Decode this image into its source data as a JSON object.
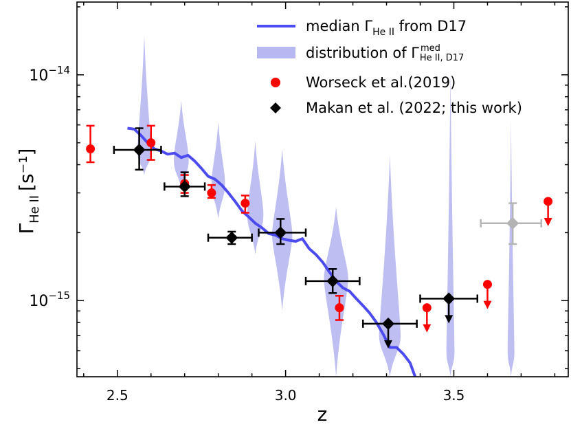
{
  "chart_data": {
    "type": "scatter",
    "title": "",
    "xlabel": "z",
    "ylabel": {
      "base": "Γ",
      "sub": "He II",
      "unit": "[s⁻¹]"
    },
    "xlim": [
      2.38,
      3.84
    ],
    "ylim": [
      4.6e-16,
      2.1e-14
    ],
    "yscale": "log",
    "x_ticks": [
      2.5,
      3.0,
      3.5
    ],
    "x_tick_labels": [
      "2.5",
      "3.0",
      "3.5"
    ],
    "y_ticks": [
      1e-15,
      1e-14
    ],
    "y_tick_labels": [
      {
        "base": "10",
        "exp": "−15"
      },
      {
        "base": "10",
        "exp": "−14"
      }
    ],
    "legend": {
      "position": "top-right",
      "entries": [
        {
          "label": "median Γ",
          "sub": "He II",
          "rest": " from D17",
          "marker": "line",
          "color": "#4b4bef"
        },
        {
          "label": "distribution of Γ",
          "sup": "med",
          "sub": "He II, D17",
          "marker": "band",
          "color": "#b7b7f2"
        },
        {
          "label": "Worseck et al.(2019)",
          "marker": "circle",
          "color": "#ff0000"
        },
        {
          "label": "Makan et al. (2022; this work)",
          "marker": "diamond",
          "color": "#000000"
        }
      ]
    },
    "median_curve": {
      "name": "median Γ He II from D17",
      "color": "#4b4bef",
      "x": [
        2.53,
        2.55,
        2.57,
        2.59,
        2.61,
        2.63,
        2.65,
        2.67,
        2.69,
        2.71,
        2.73,
        2.75,
        2.77,
        2.79,
        2.81,
        2.83,
        2.85,
        2.87,
        2.89,
        2.91,
        2.93,
        2.95,
        2.97,
        2.99,
        3.01,
        3.03,
        3.05,
        3.07,
        3.09,
        3.11,
        3.13,
        3.15,
        3.17,
        3.19,
        3.21,
        3.23,
        3.25,
        3.27,
        3.29,
        3.31,
        3.33,
        3.35,
        3.37,
        3.385
      ],
      "y": [
        5.8e-15,
        5.75e-15,
        5.4e-15,
        5e-15,
        4.7e-15,
        4.6e-15,
        4.45e-15,
        4.5e-15,
        4.3e-15,
        4.4e-15,
        4.15e-15,
        3.85e-15,
        3.55e-15,
        3.45e-15,
        3.25e-15,
        3e-15,
        2.75e-15,
        2.5e-15,
        2.35e-15,
        2.2e-15,
        2.1e-15,
        1.98e-15,
        1.95e-15,
        1.88e-15,
        1.85e-15,
        1.83e-15,
        1.88e-15,
        1.7e-15,
        1.6e-15,
        1.48e-15,
        1.34e-15,
        1.22e-15,
        1.14e-15,
        1.1e-15,
        1.02e-15,
        9.5e-16,
        8.8e-16,
        8e-16,
        7.1e-16,
        6.2e-16,
        6.2e-16,
        5.8e-16,
        5.3e-16,
        4.6e-16
      ]
    },
    "distribution": {
      "name": "distribution of Γ med He II, D17",
      "color": "#b7b7f2",
      "violins": [
        {
          "x": 2.58,
          "y_range": [
            5e-15,
            1.5e-14
          ],
          "y_center": 4.6e-15,
          "half_width_z": 0.02,
          "y_low": 3.6e-15
        },
        {
          "x": 2.69,
          "y_range": [
            3.4e-15,
            7.7e-15
          ],
          "y_center": 4.2e-15,
          "half_width_z": 0.022,
          "y_low": 3.1e-15
        },
        {
          "x": 2.8,
          "y_range": [
            2.7e-15,
            6.2e-15
          ],
          "y_center": 3.3e-15,
          "half_width_z": 0.02,
          "y_low": 2.3e-15
        },
        {
          "x": 2.91,
          "y_range": [
            1.95e-15,
            5.1e-15
          ],
          "y_center": 2.4e-15,
          "half_width_z": 0.024,
          "y_low": 1.6e-15
        },
        {
          "x": 2.99,
          "y_range": [
            1.6e-15,
            4.7e-15
          ],
          "y_center": 1.95e-15,
          "half_width_z": 0.03,
          "y_low": 9e-16
        },
        {
          "x": 3.15,
          "y_range": [
            4.6e-16,
            2.6e-15
          ],
          "y_center": 1.25e-15,
          "half_width_z": 0.036,
          "y_low": 4.6e-16
        },
        {
          "x": 3.31,
          "y_range": [
            4.6e-16,
            4.4e-15
          ],
          "y_center": 7e-16,
          "half_width_z": 0.032,
          "y_low": 4.6e-16
        },
        {
          "x": 3.49,
          "y_range": [
            4.6e-16,
            1.05e-14
          ],
          "y_center": 6e-16,
          "half_width_z": 0.012,
          "y_low": 4.6e-16
        },
        {
          "x": 3.67,
          "y_range": [
            4.6e-16,
            6.3e-15
          ],
          "y_center": 6e-16,
          "half_width_z": 0.01,
          "y_low": 4.6e-16
        }
      ]
    },
    "series": [
      {
        "name": "Worseck et al.(2019)",
        "marker": "circle",
        "color": "#ff0000",
        "points": [
          {
            "x": 2.42,
            "y": 4.7e-15,
            "y_lo": 4.1e-15,
            "y_hi": 5.95e-15
          },
          {
            "x": 2.6,
            "y": 5e-15,
            "y_lo": 4.2e-15,
            "y_hi": 5.95e-15
          },
          {
            "x": 2.7,
            "y": 3.3e-15,
            "y_lo": 3e-15,
            "y_hi": 3.6e-15
          },
          {
            "x": 2.78,
            "y": 3e-15,
            "y_lo": 2.85e-15,
            "y_hi": 3.25e-15
          },
          {
            "x": 2.88,
            "y": 2.7e-15,
            "y_lo": 2.45e-15,
            "y_hi": 2.92e-15
          },
          {
            "x": 3.16,
            "y": 9.3e-16,
            "y_lo": 8.2e-16,
            "y_hi": 1.05e-15
          },
          {
            "x": 3.42,
            "y": 9.3e-16,
            "upper_limit": true
          },
          {
            "x": 3.6,
            "y": 1.18e-15,
            "upper_limit": true
          },
          {
            "x": 3.78,
            "y": 2.75e-15,
            "upper_limit": true
          }
        ]
      },
      {
        "name": "Makan et al. (2022; this work)",
        "marker": "diamond",
        "color": "#000000",
        "points": [
          {
            "x": 2.565,
            "y": 4.65e-15,
            "x_lo": 2.49,
            "x_hi": 2.63,
            "y_lo": 3.8e-15,
            "y_hi": 5.8e-15
          },
          {
            "x": 2.7,
            "y": 3.2e-15,
            "x_lo": 2.64,
            "x_hi": 2.76,
            "y_lo": 2.9e-15,
            "y_hi": 3.7e-15
          },
          {
            "x": 2.84,
            "y": 1.9e-15,
            "x_lo": 2.77,
            "x_hi": 2.9,
            "y_lo": 1.78e-15,
            "y_hi": 2.02e-15
          },
          {
            "x": 2.985,
            "y": 2e-15,
            "x_lo": 2.92,
            "x_hi": 3.06,
            "y_lo": 1.78e-15,
            "y_hi": 2.3e-15
          },
          {
            "x": 3.14,
            "y": 1.22e-15,
            "x_lo": 3.06,
            "x_hi": 3.22,
            "y_lo": 1.08e-15,
            "y_hi": 1.38e-15
          },
          {
            "x": 3.305,
            "y": 7.9e-16,
            "x_lo": 3.23,
            "x_hi": 3.39,
            "upper_limit": true
          },
          {
            "x": 3.485,
            "y": 1.02e-15,
            "x_lo": 3.4,
            "x_hi": 3.57,
            "upper_limit": true
          },
          {
            "x": 3.675,
            "y": 2.2e-15,
            "x_lo": 3.58,
            "x_hi": 3.76,
            "y_lo": 1.78e-15,
            "y_hi": 2.7e-15,
            "color": "#b4b4b4"
          }
        ]
      }
    ]
  }
}
